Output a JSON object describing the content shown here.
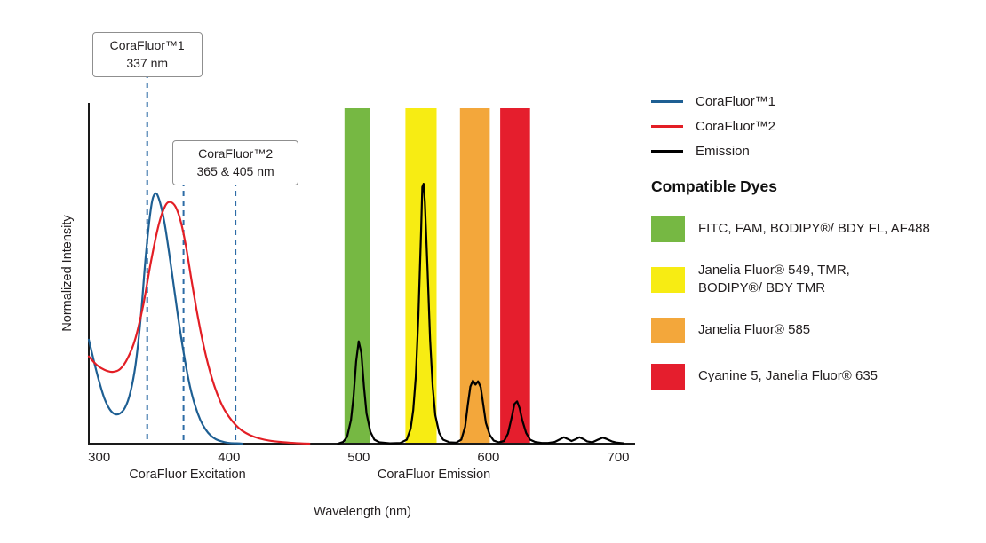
{
  "chart_data": {
    "type": "line",
    "title": "",
    "xlabel": "Wavelength (nm)",
    "ylabel": "Normalized Intensity",
    "x_ticks": [
      300,
      400,
      500,
      600,
      700
    ],
    "x_range_nm": [
      292,
      713
    ],
    "ylim": [
      0,
      1
    ],
    "grid": false,
    "marker_color": "#2d6ca6",
    "axis_color": "#1a1a1a",
    "region_labels": [
      {
        "text": "CoraFluor Excitation",
        "center_nm": 368
      },
      {
        "text": "CoraFluor Emission",
        "center_nm": 558
      }
    ],
    "callouts": [
      {
        "line1": "CoraFluor™1",
        "line2": "337 nm",
        "marker_nm": [
          337
        ]
      },
      {
        "line1": "CoraFluor™2",
        "line2": "365 & 405 nm",
        "marker_nm": [
          365,
          405
        ]
      }
    ],
    "bands": [
      {
        "color": "#76b843",
        "from_nm": 489,
        "to_nm": 509,
        "dyes": "FITC, FAM, BODIPY®/ BDY FL, AF488"
      },
      {
        "color": "#f7ec13",
        "from_nm": 536,
        "to_nm": 560,
        "dyes": "Janelia Fluor® 549, TMR, BODIPY®/ BDY TMR"
      },
      {
        "color": "#f3a73b",
        "from_nm": 578,
        "to_nm": 601,
        "dyes": "Janelia Fluor® 585"
      },
      {
        "color": "#e51e2d",
        "from_nm": 609,
        "to_nm": 632,
        "dyes": "Cyanine 5, Janelia Fluor® 635"
      }
    ],
    "series": [
      {
        "name": "CoraFluor™1",
        "role": "excitation",
        "color": "#1e5f93",
        "points": [
          [
            292,
            0.31
          ],
          [
            296,
            0.245
          ],
          [
            300,
            0.185
          ],
          [
            304,
            0.135
          ],
          [
            308,
            0.103
          ],
          [
            312,
            0.088
          ],
          [
            316,
            0.09
          ],
          [
            320,
            0.108
          ],
          [
            324,
            0.152
          ],
          [
            328,
            0.235
          ],
          [
            332,
            0.375
          ],
          [
            336,
            0.565
          ],
          [
            340,
            0.705
          ],
          [
            343,
            0.745
          ],
          [
            346,
            0.73
          ],
          [
            350,
            0.665
          ],
          [
            354,
            0.565
          ],
          [
            358,
            0.455
          ],
          [
            362,
            0.345
          ],
          [
            366,
            0.25
          ],
          [
            370,
            0.17
          ],
          [
            374,
            0.112
          ],
          [
            378,
            0.07
          ],
          [
            382,
            0.042
          ],
          [
            386,
            0.024
          ],
          [
            390,
            0.013
          ],
          [
            395,
            0.006
          ],
          [
            400,
            0.002
          ],
          [
            406,
            0.001
          ],
          [
            410,
            0
          ]
        ]
      },
      {
        "name": "CoraFluor™2",
        "role": "excitation",
        "color": "#e31e25",
        "points": [
          [
            292,
            0.26
          ],
          [
            298,
            0.235
          ],
          [
            304,
            0.22
          ],
          [
            310,
            0.214
          ],
          [
            316,
            0.222
          ],
          [
            322,
            0.255
          ],
          [
            328,
            0.315
          ],
          [
            334,
            0.415
          ],
          [
            340,
            0.545
          ],
          [
            346,
            0.655
          ],
          [
            351,
            0.71
          ],
          [
            355,
            0.72
          ],
          [
            359,
            0.705
          ],
          [
            363,
            0.66
          ],
          [
            367,
            0.585
          ],
          [
            371,
            0.49
          ],
          [
            375,
            0.4
          ],
          [
            380,
            0.3
          ],
          [
            385,
            0.22
          ],
          [
            390,
            0.158
          ],
          [
            395,
            0.112
          ],
          [
            400,
            0.08
          ],
          [
            405,
            0.056
          ],
          [
            410,
            0.039
          ],
          [
            416,
            0.026
          ],
          [
            423,
            0.016
          ],
          [
            431,
            0.009
          ],
          [
            440,
            0.005
          ],
          [
            450,
            0.002
          ],
          [
            462,
            0
          ]
        ]
      },
      {
        "name": "Emission",
        "role": "emission",
        "color": "#000000",
        "points": [
          [
            484,
            0
          ],
          [
            488,
            0.005
          ],
          [
            491,
            0.02
          ],
          [
            494,
            0.07
          ],
          [
            496,
            0.14
          ],
          [
            498,
            0.245
          ],
          [
            500,
            0.305
          ],
          [
            502,
            0.27
          ],
          [
            504,
            0.17
          ],
          [
            506,
            0.09
          ],
          [
            509,
            0.035
          ],
          [
            512,
            0.012
          ],
          [
            516,
            0.004
          ],
          [
            524,
            0.001
          ],
          [
            532,
            0.002
          ],
          [
            537,
            0.012
          ],
          [
            540,
            0.045
          ],
          [
            542,
            0.1
          ],
          [
            544,
            0.2
          ],
          [
            546,
            0.38
          ],
          [
            548,
            0.63
          ],
          [
            549,
            0.765
          ],
          [
            550,
            0.775
          ],
          [
            551,
            0.72
          ],
          [
            553,
            0.52
          ],
          [
            555,
            0.31
          ],
          [
            557,
            0.17
          ],
          [
            559,
            0.085
          ],
          [
            562,
            0.032
          ],
          [
            565,
            0.012
          ],
          [
            570,
            0.004
          ],
          [
            575,
            0.003
          ],
          [
            579,
            0.012
          ],
          [
            582,
            0.05
          ],
          [
            584,
            0.115
          ],
          [
            586,
            0.17
          ],
          [
            588,
            0.188
          ],
          [
            590,
            0.176
          ],
          [
            592,
            0.186
          ],
          [
            594,
            0.168
          ],
          [
            596,
            0.115
          ],
          [
            598,
            0.062
          ],
          [
            601,
            0.026
          ],
          [
            604,
            0.009
          ],
          [
            608,
            0.004
          ],
          [
            612,
            0.008
          ],
          [
            615,
            0.03
          ],
          [
            618,
            0.08
          ],
          [
            620,
            0.118
          ],
          [
            622,
            0.126
          ],
          [
            624,
            0.105
          ],
          [
            626,
            0.07
          ],
          [
            629,
            0.032
          ],
          [
            632,
            0.012
          ],
          [
            636,
            0.005
          ],
          [
            641,
            0.002
          ],
          [
            646,
            0.002
          ],
          [
            651,
            0.005
          ],
          [
            655,
            0.013
          ],
          [
            658,
            0.019
          ],
          [
            661,
            0.014
          ],
          [
            664,
            0.008
          ],
          [
            667,
            0.013
          ],
          [
            670,
            0.019
          ],
          [
            673,
            0.014
          ],
          [
            676,
            0.007
          ],
          [
            680,
            0.004
          ],
          [
            684,
            0.011
          ],
          [
            688,
            0.018
          ],
          [
            691,
            0.014
          ],
          [
            695,
            0.007
          ],
          [
            699,
            0.003
          ],
          [
            704,
            0.001
          ]
        ]
      }
    ]
  },
  "legend": {
    "lines": [
      {
        "label": "CoraFluor™1",
        "color": "#1e5f93"
      },
      {
        "label": "CoraFluor™2",
        "color": "#e31e25"
      },
      {
        "label": "Emission",
        "color": "#000000"
      }
    ],
    "dyes_heading": "Compatible Dyes",
    "dyes": [
      {
        "color": "#76b843",
        "lines": [
          "FITC, FAM, BODIPY®/ BDY FL, AF488"
        ]
      },
      {
        "color": "#f7ec13",
        "lines": [
          "Janelia Fluor® 549, TMR,",
          "BODIPY®/ BDY TMR"
        ]
      },
      {
        "color": "#f3a73b",
        "lines": [
          "Janelia Fluor® 585"
        ]
      },
      {
        "color": "#e51e2d",
        "lines": [
          "Cyanine 5, Janelia Fluor® 635"
        ]
      }
    ]
  }
}
